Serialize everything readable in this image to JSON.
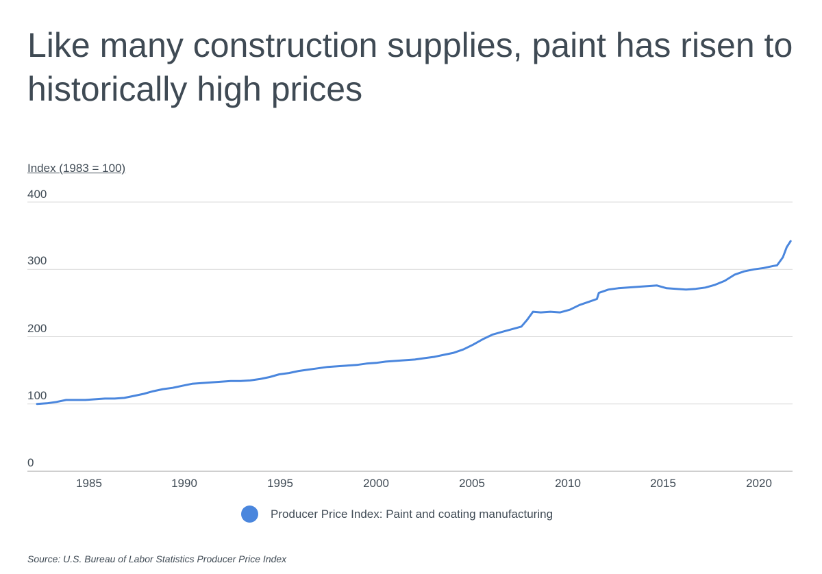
{
  "title": "Like many construction supplies, paint has risen to historically high prices",
  "source": "Source:  U.S. Bureau of Labor Statistics Producer Price Index",
  "colors": {
    "series": "#4a86dd",
    "grid": "#d9d9d9",
    "axis": "#bfbfbf",
    "text": "#3f4a54"
  },
  "chart_data": {
    "type": "line",
    "title": "Like many construction supplies, paint has risen to historically high prices",
    "ylabel": "Index (1983 = 100)",
    "xlabel": "",
    "ylim": [
      0,
      400
    ],
    "xlim": [
      1982.5,
      2022.0
    ],
    "y_ticks": [
      "0",
      "100",
      "200",
      "300",
      "400"
    ],
    "x_ticks": [
      "1985",
      "1990",
      "1995",
      "2000",
      "2005",
      "2010",
      "2015",
      "2020"
    ],
    "grid": true,
    "legend": "bottom",
    "series": [
      {
        "name": "Producer Price Index: Paint and coating manufacturing",
        "x": [
          1983.0,
          1983.5,
          1984.0,
          1984.5,
          1985.0,
          1985.5,
          1986.0,
          1986.5,
          1987.0,
          1987.5,
          1988.0,
          1988.5,
          1989.0,
          1989.5,
          1990.0,
          1990.5,
          1991.0,
          1991.5,
          1992.0,
          1992.5,
          1993.0,
          1993.5,
          1994.0,
          1994.5,
          1995.0,
          1995.5,
          1996.0,
          1996.5,
          1997.0,
          1997.5,
          1998.0,
          1998.5,
          1999.0,
          1999.5,
          2000.0,
          2000.5,
          2001.0,
          2001.5,
          2002.0,
          2002.5,
          2003.0,
          2003.5,
          2004.0,
          2004.5,
          2005.0,
          2005.5,
          2006.0,
          2006.5,
          2007.0,
          2007.5,
          2008.0,
          2008.3,
          2008.6,
          2009.0,
          2009.5,
          2010.0,
          2010.5,
          2011.0,
          2011.5,
          2011.9,
          2012.0,
          2012.5,
          2013.0,
          2013.5,
          2014.0,
          2014.5,
          2015.0,
          2015.5,
          2016.0,
          2016.5,
          2017.0,
          2017.5,
          2018.0,
          2018.5,
          2019.0,
          2019.5,
          2020.0,
          2020.5,
          2021.0,
          2021.2,
          2021.5,
          2021.7,
          2021.9
        ],
        "values": [
          100,
          101,
          103,
          106,
          106,
          106,
          107,
          108,
          108,
          109,
          112,
          115,
          119,
          122,
          124,
          127,
          130,
          131,
          132,
          133,
          134,
          134,
          135,
          137,
          140,
          144,
          146,
          149,
          151,
          153,
          155,
          156,
          157,
          158,
          160,
          161,
          163,
          164,
          165,
          166,
          168,
          170,
          173,
          176,
          181,
          188,
          196,
          203,
          207,
          211,
          215,
          225,
          237,
          236,
          237,
          236,
          240,
          247,
          252,
          256,
          265,
          270,
          272,
          273,
          274,
          275,
          276,
          272,
          271,
          270,
          271,
          273,
          277,
          283,
          292,
          297,
          300,
          302,
          305,
          306,
          318,
          333,
          342
        ]
      }
    ]
  }
}
